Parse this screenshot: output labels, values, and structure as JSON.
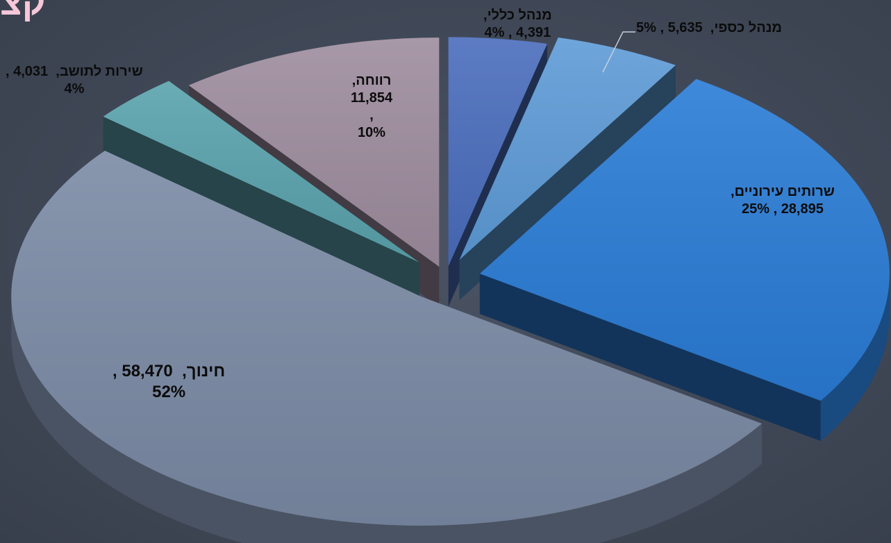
{
  "corner_title": "קצ",
  "chart_data": {
    "type": "pie",
    "title": "",
    "slices": [
      {
        "name": "מנהל כללי",
        "value": 4391,
        "value_label": "4,391",
        "percent_label": "4%",
        "color": "#4a6dbd"
      },
      {
        "name": "מנהל כספי",
        "value": 5635,
        "value_label": "5,635",
        "percent_label": "5%",
        "color": "#5e9cd8"
      },
      {
        "name": "שרותים עירוניים",
        "value": 28895,
        "value_label": "28,895",
        "percent_label": "25%",
        "color": "#2a7cd6"
      },
      {
        "name": "חינוך",
        "value": 58470,
        "value_label": "58,470",
        "percent_label": "52%",
        "color": "#7b8aa5"
      },
      {
        "name": "שירות לתושב",
        "value": 4031,
        "value_label": "4,031",
        "percent_label": "4%",
        "color": "#5aa3ad"
      },
      {
        "name": "רווחה",
        "value": 11854,
        "value_label": "11,854",
        "percent_label": "10%",
        "color": "#9e8d9f"
      }
    ]
  }
}
